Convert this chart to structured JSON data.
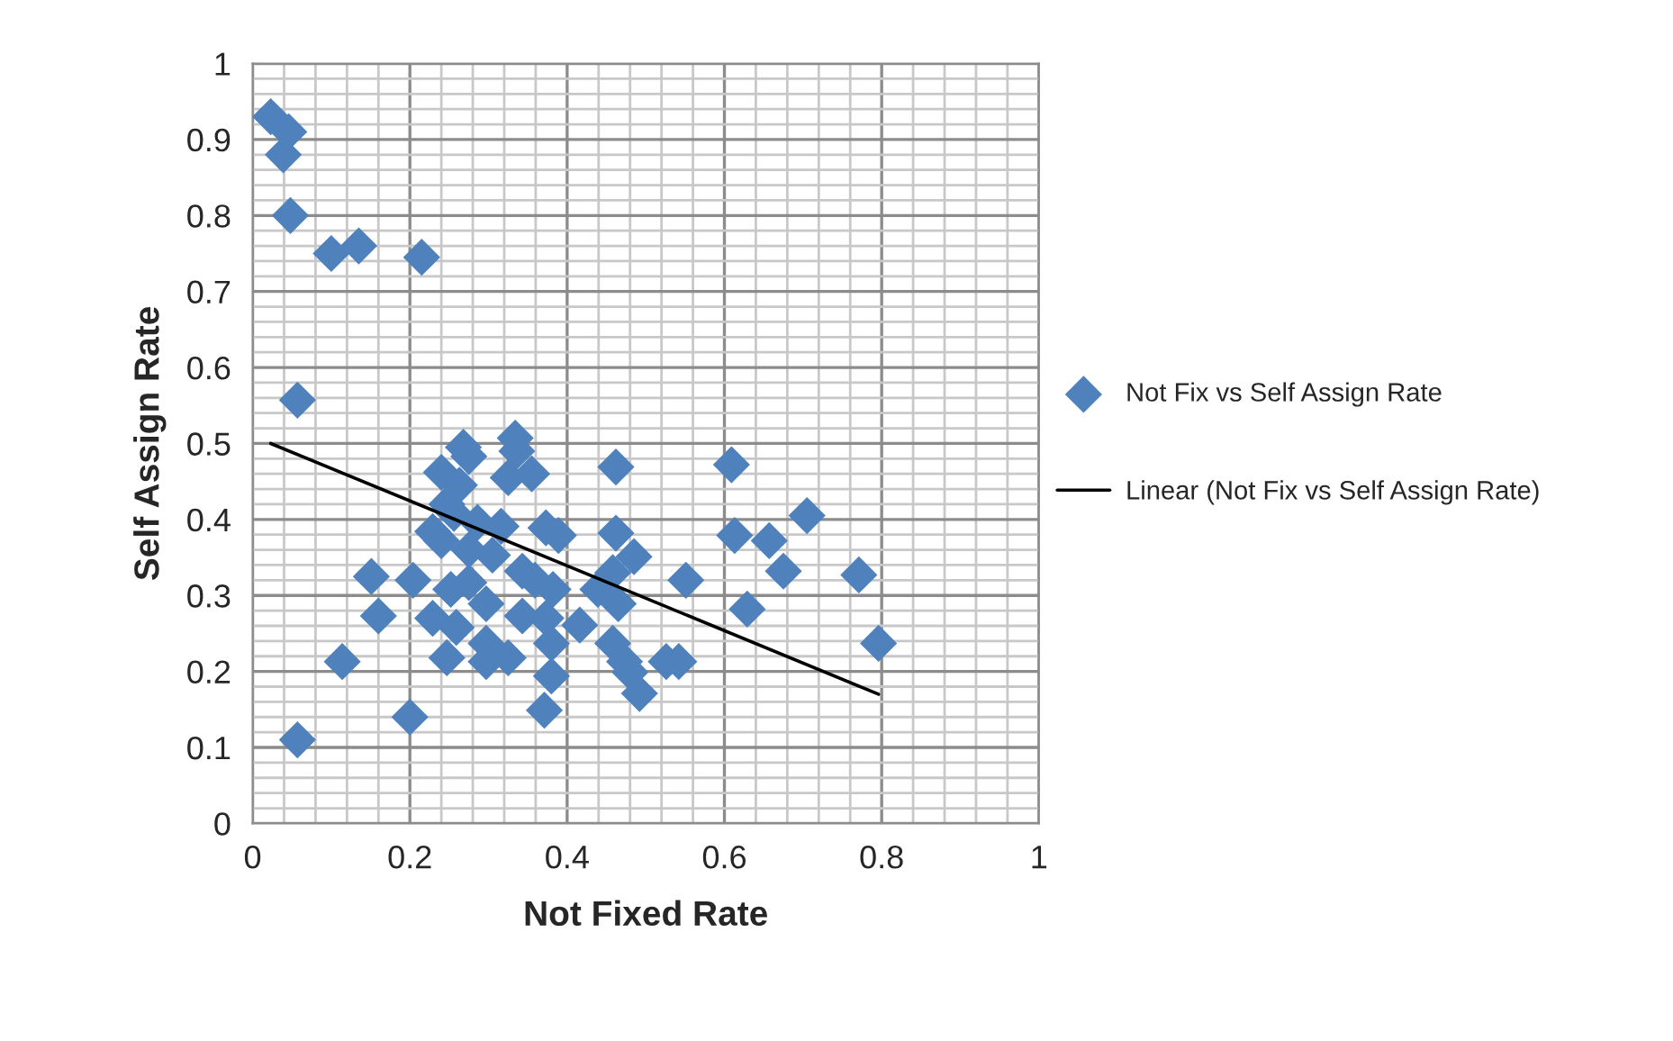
{
  "chart_data": {
    "type": "scatter",
    "xlabel": "Not Fixed Rate",
    "ylabel": "Self Assign Rate",
    "xlim": [
      0,
      1
    ],
    "ylim": [
      0,
      1
    ],
    "xticks": [
      0,
      0.2,
      0.4,
      0.6,
      0.8,
      1
    ],
    "yticks": [
      0,
      0.1,
      0.2,
      0.3,
      0.4,
      0.5,
      0.6,
      0.7,
      0.8,
      0.9,
      1
    ],
    "grid": true,
    "legend": "right",
    "series": [
      {
        "name": "Not Fix vs Self Assign Rate",
        "marker": "diamond",
        "color": "#4f81bd",
        "x": [
          0.023,
          0.046,
          0.039,
          0.048,
          0.1,
          0.135,
          0.215,
          0.057,
          0.057,
          0.2,
          0.268,
          0.275,
          0.24,
          0.263,
          0.334,
          0.336,
          0.325,
          0.355,
          0.462,
          0.247,
          0.256,
          0.229,
          0.24,
          0.286,
          0.316,
          0.373,
          0.389,
          0.462,
          0.485,
          0.275,
          0.305,
          0.343,
          0.359,
          0.151,
          0.204,
          0.252,
          0.275,
          0.297,
          0.382,
          0.439,
          0.465,
          0.458,
          0.16,
          0.229,
          0.259,
          0.343,
          0.373,
          0.416,
          0.38,
          0.114,
          0.247,
          0.297,
          0.297,
          0.325,
          0.458,
          0.473,
          0.48,
          0.492,
          0.38,
          0.371,
          0.526,
          0.542,
          0.609,
          0.613,
          0.657,
          0.705,
          0.675,
          0.771,
          0.796,
          0.629,
          0.551
        ],
        "values": [
          0.93,
          0.91,
          0.88,
          0.8,
          0.75,
          0.76,
          0.745,
          0.557,
          0.11,
          0.14,
          0.495,
          0.483,
          0.462,
          0.445,
          0.507,
          0.49,
          0.455,
          0.46,
          0.469,
          0.42,
          0.408,
          0.384,
          0.372,
          0.396,
          0.391,
          0.389,
          0.379,
          0.382,
          0.351,
          0.36,
          0.353,
          0.332,
          0.32,
          0.325,
          0.32,
          0.308,
          0.317,
          0.289,
          0.308,
          0.308,
          0.289,
          0.33,
          0.273,
          0.27,
          0.258,
          0.273,
          0.27,
          0.261,
          0.237,
          0.213,
          0.218,
          0.237,
          0.213,
          0.218,
          0.237,
          0.213,
          0.199,
          0.171,
          0.194,
          0.149,
          0.213,
          0.213,
          0.472,
          0.379,
          0.372,
          0.405,
          0.332,
          0.327,
          0.237,
          0.282,
          0.32
        ]
      },
      {
        "name": "Linear (Not Fix vs Self Assign Rate)",
        "type": "line",
        "color": "#000000",
        "x": [
          0.023,
          0.796
        ],
        "values": [
          0.5,
          0.17
        ]
      }
    ]
  }
}
